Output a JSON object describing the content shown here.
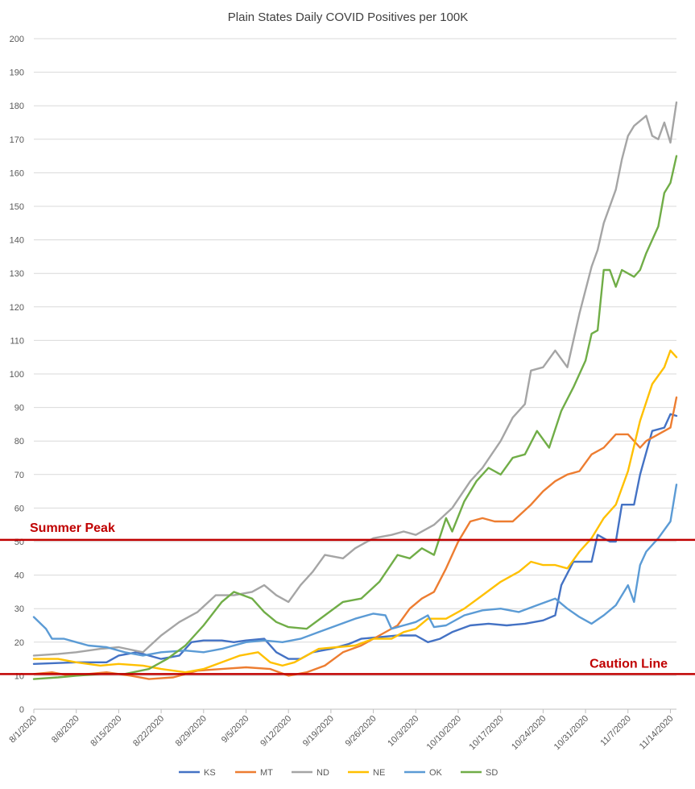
{
  "chart_data": {
    "type": "line",
    "title": "Plain States Daily COVID Positives per 100K",
    "xlabel": "",
    "ylabel": "",
    "ylim": [
      0,
      200
    ],
    "y_ticks": [
      0,
      10,
      20,
      30,
      40,
      50,
      60,
      70,
      80,
      90,
      100,
      110,
      120,
      130,
      140,
      150,
      160,
      170,
      180,
      190,
      200
    ],
    "x_ticks": [
      "8/1/2020",
      "8/8/2020",
      "8/15/2020",
      "8/22/2020",
      "8/29/2020",
      "9/5/2020",
      "9/12/2020",
      "9/19/2020",
      "9/26/2020",
      "10/3/2020",
      "10/10/2020",
      "10/17/2020",
      "10/24/2020",
      "10/31/2020",
      "11/7/2020",
      "11/14/2020"
    ],
    "x_start": "8/1/2020",
    "x_end": "11/15/2020",
    "grid": "horizontal",
    "legend_position": "bottom",
    "series": [
      {
        "name": "KS",
        "color": "#4472c4",
        "points": [
          [
            "8/1/2020",
            13.5
          ],
          [
            "8/8/2020",
            14
          ],
          [
            "8/13/2020",
            14
          ],
          [
            "8/15/2020",
            16
          ],
          [
            "8/18/2020",
            17
          ],
          [
            "8/22/2020",
            15
          ],
          [
            "8/25/2020",
            16
          ],
          [
            "8/27/2020",
            20
          ],
          [
            "8/29/2020",
            20.5
          ],
          [
            "9/1/2020",
            20.5
          ],
          [
            "9/3/2020",
            20
          ],
          [
            "9/5/2020",
            20.5
          ],
          [
            "9/8/2020",
            21
          ],
          [
            "9/10/2020",
            17
          ],
          [
            "9/12/2020",
            15
          ],
          [
            "9/14/2020",
            15
          ],
          [
            "9/16/2020",
            17
          ],
          [
            "9/19/2020",
            18
          ],
          [
            "9/22/2020",
            19.5
          ],
          [
            "9/24/2020",
            21
          ],
          [
            "9/27/2020",
            21.5
          ],
          [
            "9/30/2020",
            22
          ],
          [
            "10/3/2020",
            22
          ],
          [
            "10/5/2020",
            20
          ],
          [
            "10/7/2020",
            21
          ],
          [
            "10/9/2020",
            23
          ],
          [
            "10/12/2020",
            25
          ],
          [
            "10/15/2020",
            25.5
          ],
          [
            "10/18/2020",
            25
          ],
          [
            "10/21/2020",
            25.5
          ],
          [
            "10/24/2020",
            26.5
          ],
          [
            "10/26/2020",
            28
          ],
          [
            "10/27/2020",
            37
          ],
          [
            "10/29/2020",
            44
          ],
          [
            "11/1/2020",
            44
          ],
          [
            "11/2/2020",
            52
          ],
          [
            "11/4/2020",
            50
          ],
          [
            "11/5/2020",
            50
          ],
          [
            "11/6/2020",
            61
          ],
          [
            "11/8/2020",
            61
          ],
          [
            "11/9/2020",
            70
          ],
          [
            "11/11/2020",
            83
          ],
          [
            "11/13/2020",
            84
          ],
          [
            "11/14/2020",
            88
          ],
          [
            "11/15/2020",
            87.5
          ]
        ]
      },
      {
        "name": "MT",
        "color": "#ed7d31",
        "points": [
          [
            "8/1/2020",
            10.5
          ],
          [
            "8/4/2020",
            11
          ],
          [
            "8/7/2020",
            10
          ],
          [
            "8/13/2020",
            11
          ],
          [
            "8/17/2020",
            10
          ],
          [
            "8/20/2020",
            9
          ],
          [
            "8/24/2020",
            9.5
          ],
          [
            "8/28/2020",
            11.5
          ],
          [
            "9/1/2020",
            12
          ],
          [
            "9/5/2020",
            12.5
          ],
          [
            "9/9/2020",
            12
          ],
          [
            "9/12/2020",
            10
          ],
          [
            "9/15/2020",
            11
          ],
          [
            "9/18/2020",
            13
          ],
          [
            "9/21/2020",
            17
          ],
          [
            "9/24/2020",
            19
          ],
          [
            "9/27/2020",
            22
          ],
          [
            "9/30/2020",
            25
          ],
          [
            "10/2/2020",
            30
          ],
          [
            "10/4/2020",
            33
          ],
          [
            "10/6/2020",
            35
          ],
          [
            "10/8/2020",
            42
          ],
          [
            "10/10/2020",
            50
          ],
          [
            "10/12/2020",
            56
          ],
          [
            "10/14/2020",
            57
          ],
          [
            "10/16/2020",
            56
          ],
          [
            "10/19/2020",
            56
          ],
          [
            "10/22/2020",
            61
          ],
          [
            "10/24/2020",
            65
          ],
          [
            "10/26/2020",
            68
          ],
          [
            "10/28/2020",
            70
          ],
          [
            "10/30/2020",
            71
          ],
          [
            "11/1/2020",
            76
          ],
          [
            "11/3/2020",
            78
          ],
          [
            "11/5/2020",
            82
          ],
          [
            "11/7/2020",
            82
          ],
          [
            "11/9/2020",
            78
          ],
          [
            "11/10/2020",
            80
          ],
          [
            "11/12/2020",
            82
          ],
          [
            "11/14/2020",
            84
          ],
          [
            "11/15/2020",
            93
          ]
        ]
      },
      {
        "name": "ND",
        "color": "#a5a5a5",
        "points": [
          [
            "8/1/2020",
            16
          ],
          [
            "8/5/2020",
            16.5
          ],
          [
            "8/8/2020",
            17
          ],
          [
            "8/12/2020",
            18
          ],
          [
            "8/15/2020",
            18.5
          ],
          [
            "8/19/2020",
            17
          ],
          [
            "8/22/2020",
            22
          ],
          [
            "8/25/2020",
            26
          ],
          [
            "8/28/2020",
            29
          ],
          [
            "8/31/2020",
            34
          ],
          [
            "9/3/2020",
            34
          ],
          [
            "9/6/2020",
            35
          ],
          [
            "9/8/2020",
            37
          ],
          [
            "9/10/2020",
            34
          ],
          [
            "9/12/2020",
            32
          ],
          [
            "9/14/2020",
            37
          ],
          [
            "9/16/2020",
            41
          ],
          [
            "9/18/2020",
            46
          ],
          [
            "9/21/2020",
            45
          ],
          [
            "9/23/2020",
            48
          ],
          [
            "9/26/2020",
            51
          ],
          [
            "9/29/2020",
            52
          ],
          [
            "10/1/2020",
            53
          ],
          [
            "10/3/2020",
            52
          ],
          [
            "10/6/2020",
            55
          ],
          [
            "10/9/2020",
            60
          ],
          [
            "10/12/2020",
            68
          ],
          [
            "10/14/2020",
            72
          ],
          [
            "10/17/2020",
            80
          ],
          [
            "10/19/2020",
            87
          ],
          [
            "10/21/2020",
            91
          ],
          [
            "10/22/2020",
            101
          ],
          [
            "10/24/2020",
            102
          ],
          [
            "10/26/2020",
            107
          ],
          [
            "10/28/2020",
            102
          ],
          [
            "10/30/2020",
            118
          ],
          [
            "11/1/2020",
            132
          ],
          [
            "11/2/2020",
            137
          ],
          [
            "11/3/2020",
            145
          ],
          [
            "11/5/2020",
            155
          ],
          [
            "11/6/2020",
            164
          ],
          [
            "11/7/2020",
            171
          ],
          [
            "11/8/2020",
            174
          ],
          [
            "11/10/2020",
            177
          ],
          [
            "11/11/2020",
            171
          ],
          [
            "11/12/2020",
            170
          ],
          [
            "11/13/2020",
            175
          ],
          [
            "11/14/2020",
            169
          ],
          [
            "11/15/2020",
            181
          ]
        ]
      },
      {
        "name": "NE",
        "color": "#ffc000",
        "points": [
          [
            "8/1/2020",
            15
          ],
          [
            "8/5/2020",
            15
          ],
          [
            "8/8/2020",
            14
          ],
          [
            "8/12/2020",
            13
          ],
          [
            "8/15/2020",
            13.5
          ],
          [
            "8/19/2020",
            13
          ],
          [
            "8/22/2020",
            12
          ],
          [
            "8/26/2020",
            11
          ],
          [
            "8/29/2020",
            12
          ],
          [
            "9/1/2020",
            14
          ],
          [
            "9/4/2020",
            16
          ],
          [
            "9/7/2020",
            17
          ],
          [
            "9/9/2020",
            14
          ],
          [
            "9/11/2020",
            13
          ],
          [
            "9/13/2020",
            14
          ],
          [
            "9/15/2020",
            16
          ],
          [
            "9/17/2020",
            18
          ],
          [
            "9/20/2020",
            18.5
          ],
          [
            "9/23/2020",
            19
          ],
          [
            "9/26/2020",
            21
          ],
          [
            "9/29/2020",
            21
          ],
          [
            "10/1/2020",
            23
          ],
          [
            "10/3/2020",
            24
          ],
          [
            "10/5/2020",
            27
          ],
          [
            "10/8/2020",
            27
          ],
          [
            "10/11/2020",
            30
          ],
          [
            "10/14/2020",
            34
          ],
          [
            "10/17/2020",
            38
          ],
          [
            "10/20/2020",
            41
          ],
          [
            "10/22/2020",
            44
          ],
          [
            "10/24/2020",
            43
          ],
          [
            "10/26/2020",
            43
          ],
          [
            "10/28/2020",
            42
          ],
          [
            "10/30/2020",
            47
          ],
          [
            "11/1/2020",
            51
          ],
          [
            "11/3/2020",
            57
          ],
          [
            "11/5/2020",
            61
          ],
          [
            "11/7/2020",
            71
          ],
          [
            "11/9/2020",
            86
          ],
          [
            "11/11/2020",
            97
          ],
          [
            "11/13/2020",
            102
          ],
          [
            "11/14/2020",
            107
          ],
          [
            "11/15/2020",
            105
          ]
        ]
      },
      {
        "name": "OK",
        "color": "#5b9bd5",
        "points": [
          [
            "8/1/2020",
            27.5
          ],
          [
            "8/3/2020",
            24
          ],
          [
            "8/4/2020",
            21
          ],
          [
            "8/6/2020",
            21
          ],
          [
            "8/8/2020",
            20
          ],
          [
            "8/10/2020",
            19
          ],
          [
            "8/13/2020",
            18.5
          ],
          [
            "8/16/2020",
            17
          ],
          [
            "8/19/2020",
            16
          ],
          [
            "8/22/2020",
            17
          ],
          [
            "8/26/2020",
            17.5
          ],
          [
            "8/29/2020",
            17
          ],
          [
            "9/1/2020",
            18
          ],
          [
            "9/5/2020",
            20
          ],
          [
            "9/8/2020",
            20.5
          ],
          [
            "9/11/2020",
            20
          ],
          [
            "9/14/2020",
            21
          ],
          [
            "9/17/2020",
            23
          ],
          [
            "9/20/2020",
            25
          ],
          [
            "9/23/2020",
            27
          ],
          [
            "9/26/2020",
            28.5
          ],
          [
            "9/28/2020",
            28
          ],
          [
            "9/29/2020",
            24
          ],
          [
            "10/1/2020",
            25
          ],
          [
            "10/3/2020",
            26
          ],
          [
            "10/5/2020",
            28
          ],
          [
            "10/6/2020",
            24.5
          ],
          [
            "10/8/2020",
            25
          ],
          [
            "10/11/2020",
            28
          ],
          [
            "10/14/2020",
            29.5
          ],
          [
            "10/17/2020",
            30
          ],
          [
            "10/20/2020",
            29
          ],
          [
            "10/23/2020",
            31
          ],
          [
            "10/26/2020",
            33
          ],
          [
            "10/28/2020",
            30
          ],
          [
            "10/30/2020",
            27.5
          ],
          [
            "11/1/2020",
            25.5
          ],
          [
            "11/3/2020",
            28
          ],
          [
            "11/5/2020",
            31
          ],
          [
            "11/7/2020",
            37
          ],
          [
            "11/8/2020",
            32
          ],
          [
            "11/9/2020",
            43
          ],
          [
            "11/10/2020",
            47
          ],
          [
            "11/12/2020",
            51
          ],
          [
            "11/14/2020",
            56
          ],
          [
            "11/15/2020",
            67
          ]
        ]
      },
      {
        "name": "SD",
        "color": "#70ad47",
        "points": [
          [
            "8/1/2020",
            9
          ],
          [
            "8/5/2020",
            9.5
          ],
          [
            "8/8/2020",
            10
          ],
          [
            "8/12/2020",
            10.5
          ],
          [
            "8/16/2020",
            10.5
          ],
          [
            "8/20/2020",
            12
          ],
          [
            "8/23/2020",
            15
          ],
          [
            "8/26/2020",
            19
          ],
          [
            "8/29/2020",
            25
          ],
          [
            "9/1/2020",
            32
          ],
          [
            "9/3/2020",
            35
          ],
          [
            "9/6/2020",
            33
          ],
          [
            "9/8/2020",
            29
          ],
          [
            "9/10/2020",
            26
          ],
          [
            "9/12/2020",
            24.5
          ],
          [
            "9/15/2020",
            24
          ],
          [
            "9/18/2020",
            28
          ],
          [
            "9/21/2020",
            32
          ],
          [
            "9/24/2020",
            33
          ],
          [
            "9/27/2020",
            38
          ],
          [
            "9/30/2020",
            46
          ],
          [
            "10/2/2020",
            45
          ],
          [
            "10/4/2020",
            48
          ],
          [
            "10/6/2020",
            46
          ],
          [
            "10/8/2020",
            57
          ],
          [
            "10/9/2020",
            53
          ],
          [
            "10/11/2020",
            62
          ],
          [
            "10/13/2020",
            68
          ],
          [
            "10/15/2020",
            72
          ],
          [
            "10/17/2020",
            70
          ],
          [
            "10/19/2020",
            75
          ],
          [
            "10/21/2020",
            76
          ],
          [
            "10/23/2020",
            83
          ],
          [
            "10/25/2020",
            78
          ],
          [
            "10/27/2020",
            89
          ],
          [
            "10/29/2020",
            96
          ],
          [
            "10/31/2020",
            104
          ],
          [
            "11/1/2020",
            112
          ],
          [
            "11/2/2020",
            113
          ],
          [
            "11/3/2020",
            131
          ],
          [
            "11/4/2020",
            131
          ],
          [
            "11/5/2020",
            126
          ],
          [
            "11/6/2020",
            131
          ],
          [
            "11/8/2020",
            129
          ],
          [
            "11/9/2020",
            131
          ],
          [
            "11/10/2020",
            136
          ],
          [
            "11/12/2020",
            144
          ],
          [
            "11/13/2020",
            154
          ],
          [
            "11/14/2020",
            157
          ],
          [
            "11/15/2020",
            165
          ]
        ]
      }
    ],
    "annotations": [
      {
        "label": "Summer Peak",
        "y": 50.5,
        "color": "#c00000",
        "side": "left"
      },
      {
        "label": "Caution Line",
        "y": 10.5,
        "color": "#c00000",
        "side": "right"
      }
    ]
  }
}
